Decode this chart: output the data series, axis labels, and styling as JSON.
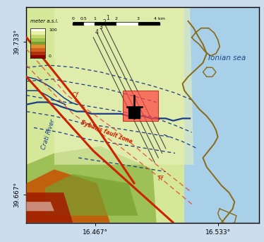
{
  "bg_sea": "#b8d8ea",
  "bg_land_pale": "#ddeaaa",
  "bg_land_green": "#a8c870",
  "bg_land_orange": "#d07820",
  "bg_land_red": "#b83000",
  "coastline_color": "#8B6914",
  "river_color": "#1a3a8a",
  "fault_red": "#cc2200",
  "fault_red_dashed": "#e05030",
  "xlim": [
    16.43,
    16.555
  ],
  "ylim": [
    39.655,
    39.748
  ],
  "xticks": [
    16.467,
    16.533
  ],
  "xticklabels": [
    "16.467°",
    "16.533°"
  ],
  "yticks": [
    39.667,
    39.733
  ],
  "yticklabels": [
    "39.667°",
    "39.733°"
  ]
}
